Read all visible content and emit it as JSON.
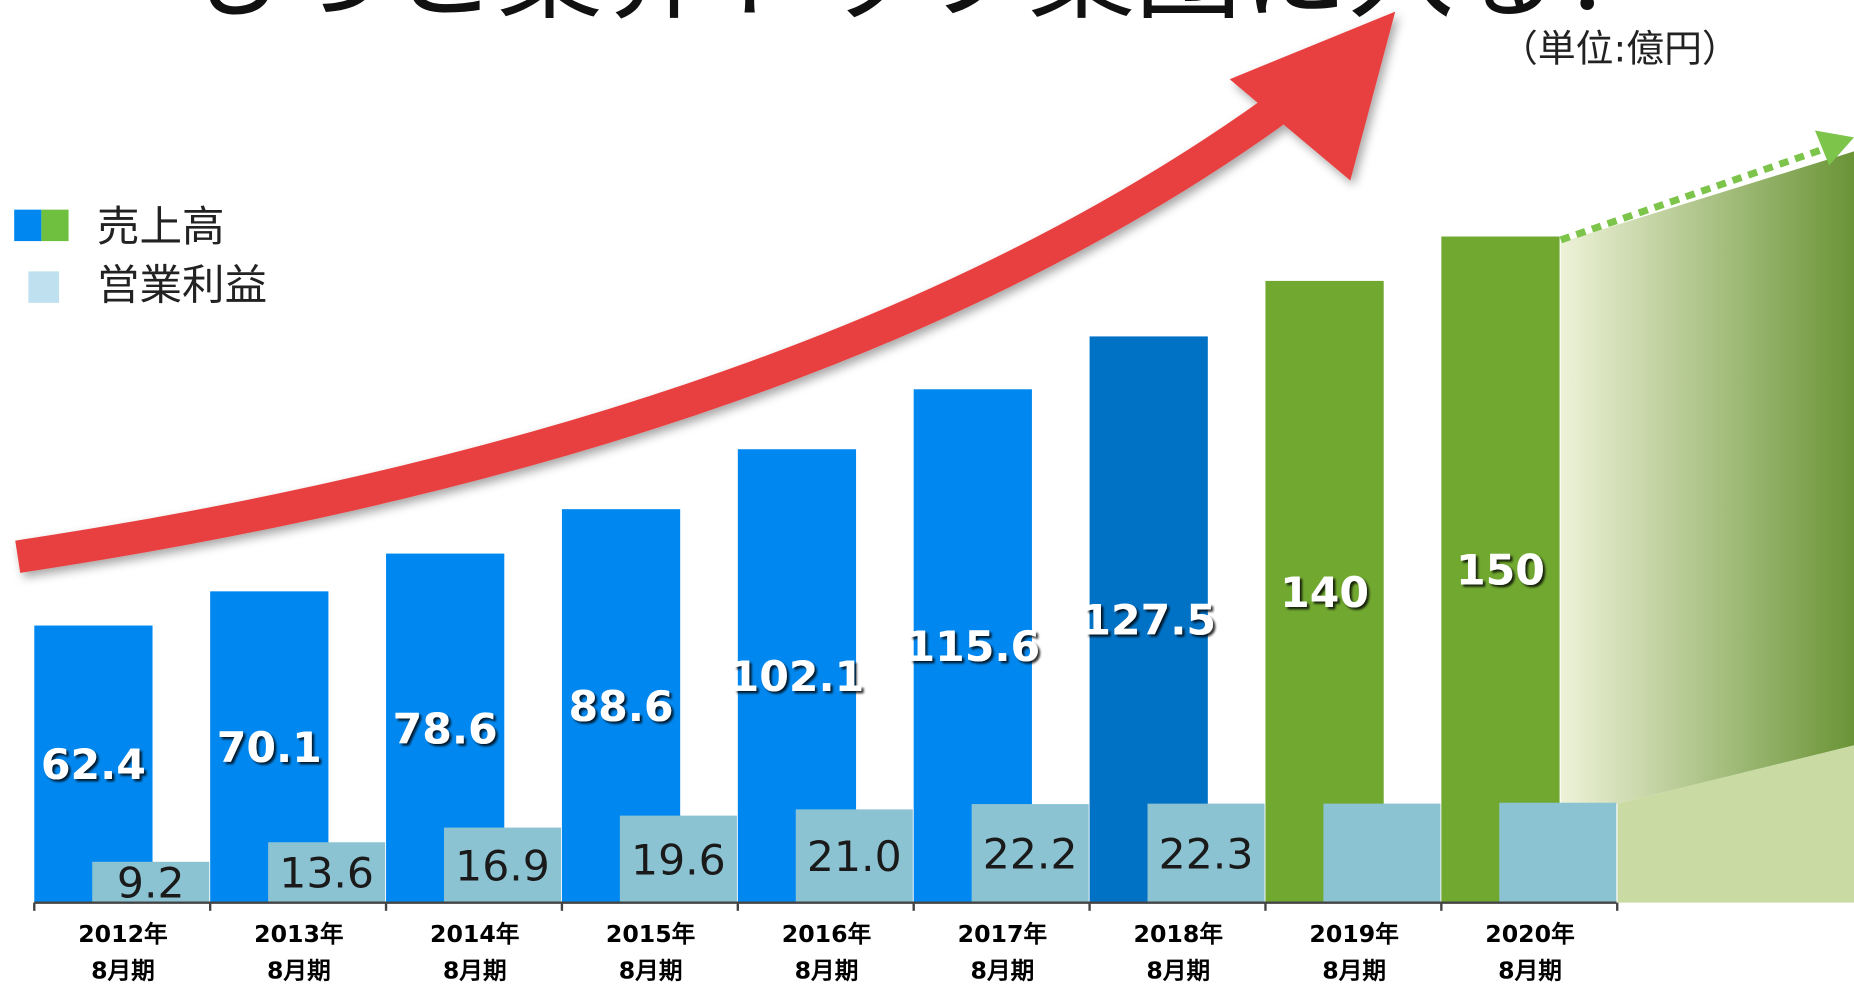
{
  "chart_data": {
    "type": "bar",
    "title": "もっと業界トップ集団に入る！",
    "unit_note": "（単位:億円）",
    "categories": [
      [
        "2012年",
        "8月期"
      ],
      [
        "2013年",
        "8月期"
      ],
      [
        "2014年",
        "8月期"
      ],
      [
        "2015年",
        "8月期"
      ],
      [
        "2016年",
        "8月期"
      ],
      [
        "2017年",
        "8月期"
      ],
      [
        "2018年",
        "8月期"
      ],
      [
        "2019年",
        "8月期"
      ],
      [
        "2020年",
        "8月期"
      ]
    ],
    "ylim": [
      0,
      200
    ],
    "series": [
      {
        "name": "売上高",
        "color": "#0088f0",
        "colors": [
          "#0088f0",
          "#0088f0",
          "#0088f0",
          "#0088f0",
          "#0088f0",
          "#0088f0",
          "#0072c6",
          "#70a830",
          "#70a830"
        ],
        "values": [
          62.4,
          70.1,
          78.6,
          88.6,
          102.1,
          115.6,
          127.5,
          140,
          150
        ]
      },
      {
        "name": "営業利益",
        "color": "#8cc3d3",
        "values": [
          9.2,
          13.6,
          16.9,
          19.6,
          21.0,
          22.2,
          22.3,
          22.3,
          22.5
        ],
        "value_labels": [
          "9.2",
          "13.6",
          "16.9",
          "19.6",
          "21.0",
          "22.2",
          "22.3",
          null,
          null
        ]
      }
    ]
  }
}
